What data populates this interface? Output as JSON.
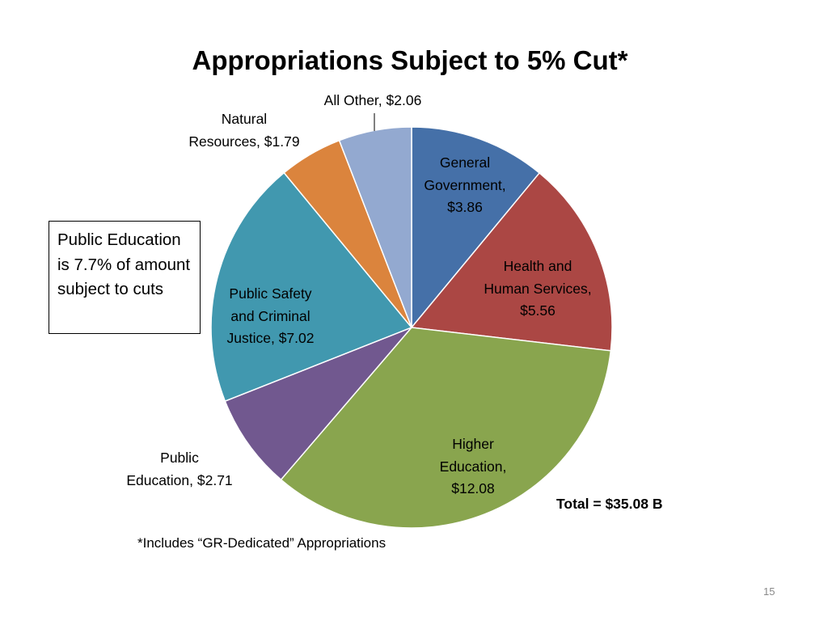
{
  "slide": {
    "title": "Appropriations Subject to 5% Cut*",
    "callout": "Public Education is 7.7% of amount subject to cuts",
    "total": "Total = $35.08 B",
    "footnote": "*Includes “GR-Dedicated” Appropriations",
    "page_number": "15"
  },
  "chart_data": {
    "type": "pie",
    "title": "Appropriations Subject to 5% Cut*",
    "categories": [
      "General Government",
      "Health and Human Services",
      "Higher Education",
      "Public Education",
      "Public Safety and Criminal Justice",
      "Natural Resources",
      "All Other"
    ],
    "values": [
      3.86,
      5.56,
      12.08,
      2.71,
      7.02,
      1.79,
      2.06
    ],
    "colors": [
      "#4570A8",
      "#AB4744",
      "#89A54E",
      "#71588F",
      "#4198AF",
      "#DB843D",
      "#93A9D0"
    ],
    "data_labels": [
      "General Government, $3.86",
      "Health and Human Services, $5.56",
      "Higher Education, $12.08",
      "Public Education, $2.71",
      "Public Safety and Criminal Justice, $7.02",
      "Natural Resources, $1.79",
      "All Other, $2.06"
    ],
    "start_angle": "12 o'clock",
    "direction": "clockwise",
    "legend": "none"
  }
}
